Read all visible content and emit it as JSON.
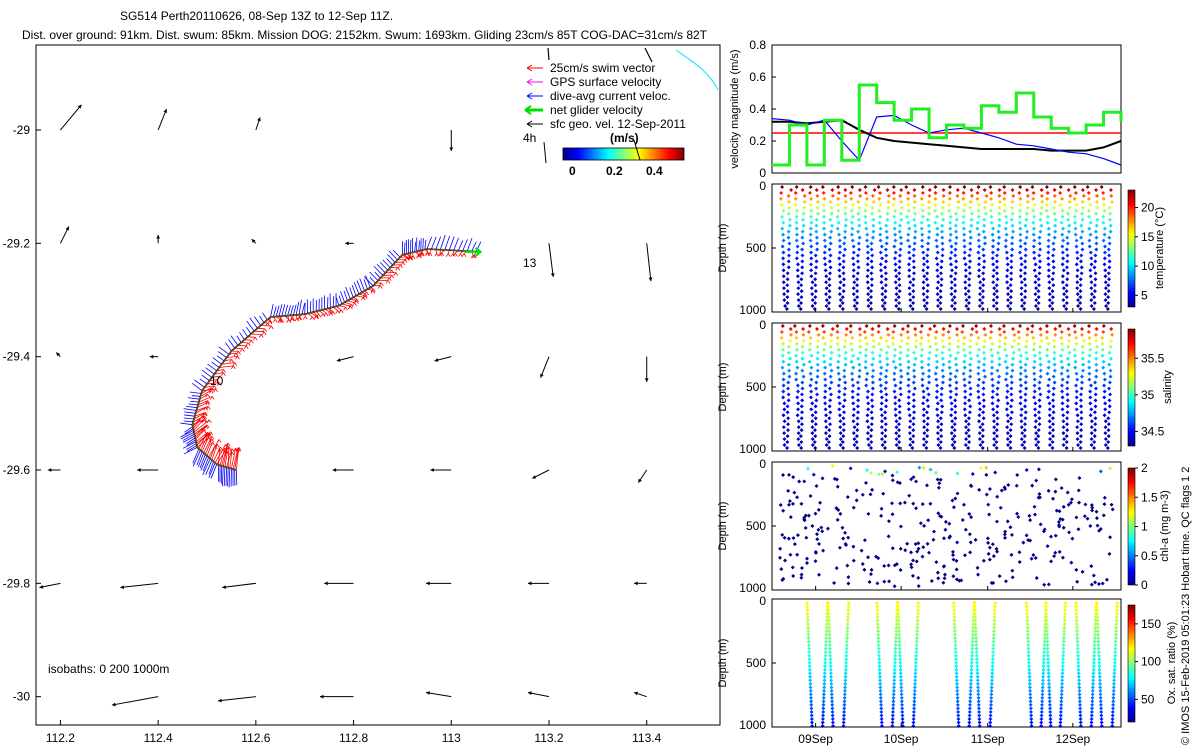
{
  "title": {
    "line1": "SG514 Perth20110626, 08-Sep 13Z to 12-Sep 11Z.",
    "line2": "Dist. over ground: 91km. Dist. swum: 85km. Mission DOG: 2152km. Swum: 1693km. Gliding 23cm/s 85T COG-DAC=31cm/s 82T"
  },
  "credit": "© IMOS 15-Feb-2019 05:01:23 Hobart time. QC flags 1  2",
  "chart_data": [
    {
      "type": "map",
      "xlim": [
        112.15,
        113.55
      ],
      "ylim": [
        -30.05,
        -28.85
      ],
      "x_ticks": [
        112.2,
        112.4,
        112.6,
        112.8,
        113,
        113.2,
        113.4
      ],
      "x_tick_labels": [
        "112.2",
        "112.4",
        "112.6",
        "112.8",
        "113",
        "113.2",
        "113.4"
      ],
      "y_ticks": [
        -29,
        -29.2,
        -29.4,
        -29.6,
        -29.8,
        -30
      ],
      "y_tick_labels": [
        "-29",
        "-29.2",
        "-29.4",
        "-29.6",
        "-29.8",
        "-30"
      ],
      "legend": {
        "placement": "top-right",
        "entries": [
          {
            "label": "25cm/s swim vector",
            "color": "#ff0000"
          },
          {
            "label": "GPS surface velocity",
            "color": "#ff00ff"
          },
          {
            "label": "dive-avg current veloc.",
            "color": "#0000ff"
          },
          {
            "label": "net glider velocity",
            "color": "#00e000"
          },
          {
            "label": "sfc geo. vel. 12-Sep-2011",
            "color": "#000000"
          }
        ],
        "extra_label": "4h",
        "colorbar_title": "(m/s)",
        "colorbar_ticks": [
          "0",
          "0.2",
          "0.4"
        ]
      },
      "track_labels": [
        {
          "text": "13",
          "lon": 113.18,
          "lat": -29.21
        },
        {
          "text": "10",
          "lon": 112.51,
          "lat": -29.43
        }
      ],
      "track": [
        [
          112.56,
          -29.6
        ],
        [
          112.52,
          -29.59
        ],
        [
          112.48,
          -29.56
        ],
        [
          112.47,
          -29.52
        ],
        [
          112.49,
          -29.46
        ],
        [
          112.55,
          -29.39
        ],
        [
          112.63,
          -29.33
        ],
        [
          112.7,
          -29.325
        ],
        [
          112.77,
          -29.31
        ],
        [
          112.84,
          -29.275
        ],
        [
          112.9,
          -29.22
        ],
        [
          112.95,
          -29.21
        ],
        [
          113.06,
          -29.215
        ]
      ],
      "geo_vectors": [
        {
          "lon": 112.2,
          "lat": -29.0,
          "u": 0.05,
          "v": 0.06
        },
        {
          "lon": 112.4,
          "lat": -29.0,
          "u": 0.02,
          "v": 0.05
        },
        {
          "lon": 112.6,
          "lat": -29.0,
          "u": 0.01,
          "v": 0.03
        },
        {
          "lon": 113.0,
          "lat": -29.0,
          "u": 0.0,
          "v": -0.05
        },
        {
          "lon": 112.2,
          "lat": -29.2,
          "u": 0.02,
          "v": 0.04
        },
        {
          "lon": 112.4,
          "lat": -29.2,
          "u": 0.0,
          "v": 0.02
        },
        {
          "lon": 112.6,
          "lat": -29.2,
          "u": -0.01,
          "v": 0.01
        },
        {
          "lon": 112.8,
          "lat": -29.2,
          "u": -0.02,
          "v": 0.0
        },
        {
          "lon": 113.2,
          "lat": -29.2,
          "u": 0.01,
          "v": -0.08
        },
        {
          "lon": 113.4,
          "lat": -29.2,
          "u": 0.01,
          "v": -0.09
        },
        {
          "lon": 112.2,
          "lat": -29.4,
          "u": -0.01,
          "v": 0.01
        },
        {
          "lon": 112.4,
          "lat": -29.4,
          "u": -0.02,
          "v": 0.0
        },
        {
          "lon": 112.8,
          "lat": -29.4,
          "u": -0.04,
          "v": -0.01
        },
        {
          "lon": 113.0,
          "lat": -29.4,
          "u": -0.04,
          "v": -0.01
        },
        {
          "lon": 113.2,
          "lat": -29.4,
          "u": -0.02,
          "v": -0.05
        },
        {
          "lon": 113.4,
          "lat": -29.4,
          "u": 0.0,
          "v": -0.06
        },
        {
          "lon": 112.2,
          "lat": -29.6,
          "u": -0.03,
          "v": 0.0
        },
        {
          "lon": 112.4,
          "lat": -29.6,
          "u": -0.05,
          "v": 0.0
        },
        {
          "lon": 112.8,
          "lat": -29.6,
          "u": -0.05,
          "v": 0.0
        },
        {
          "lon": 113.0,
          "lat": -29.6,
          "u": -0.05,
          "v": 0.0
        },
        {
          "lon": 113.2,
          "lat": -29.6,
          "u": -0.04,
          "v": -0.02
        },
        {
          "lon": 113.4,
          "lat": -29.6,
          "u": -0.02,
          "v": -0.03
        },
        {
          "lon": 112.2,
          "lat": -29.8,
          "u": -0.05,
          "v": -0.01
        },
        {
          "lon": 112.4,
          "lat": -29.8,
          "u": -0.09,
          "v": -0.01
        },
        {
          "lon": 112.6,
          "lat": -29.8,
          "u": -0.08,
          "v": -0.01
        },
        {
          "lon": 112.8,
          "lat": -29.8,
          "u": -0.07,
          "v": 0.0
        },
        {
          "lon": 113.0,
          "lat": -29.8,
          "u": -0.06,
          "v": 0.0
        },
        {
          "lon": 113.2,
          "lat": -29.8,
          "u": -0.05,
          "v": 0.0
        },
        {
          "lon": 113.4,
          "lat": -29.8,
          "u": -0.03,
          "v": 0.0
        },
        {
          "lon": 112.4,
          "lat": -30.0,
          "u": -0.11,
          "v": -0.02
        },
        {
          "lon": 112.6,
          "lat": -30.0,
          "u": -0.09,
          "v": -0.01
        },
        {
          "lon": 112.8,
          "lat": -30.0,
          "u": -0.08,
          "v": 0.0
        },
        {
          "lon": 113.0,
          "lat": -30.0,
          "u": -0.06,
          "v": 0.01
        },
        {
          "lon": 113.2,
          "lat": -30.0,
          "u": -0.05,
          "v": 0.01
        },
        {
          "lon": 113.4,
          "lat": -30.0,
          "u": -0.03,
          "v": 0.01
        }
      ],
      "annotation": "isobaths: 0   200  1000m"
    },
    {
      "type": "line",
      "ylabel": "velocity magnitude (m/s)",
      "ylim": [
        0,
        0.8
      ],
      "y_ticks": [
        0,
        0.2,
        0.4,
        0.6,
        0.8
      ],
      "x": [
        0,
        0.05,
        0.1,
        0.15,
        0.2,
        0.25,
        0.3,
        0.35,
        0.4,
        0.45,
        0.5,
        0.55,
        0.6,
        0.65,
        0.7,
        0.75,
        0.8,
        0.85,
        0.9,
        0.95,
        1
      ],
      "series": [
        {
          "color": "#ff0000",
          "values": [
            0.25,
            0.25,
            0.25,
            0.25,
            0.25,
            0.25,
            0.25,
            0.25,
            0.25,
            0.25,
            0.25,
            0.25,
            0.25,
            0.25,
            0.25,
            0.25,
            0.25,
            0.25,
            0.25,
            0.25,
            0.25
          ]
        },
        {
          "color": "#000000",
          "values": [
            0.32,
            0.32,
            0.31,
            0.32,
            0.33,
            0.27,
            0.22,
            0.2,
            0.19,
            0.18,
            0.17,
            0.16,
            0.15,
            0.15,
            0.15,
            0.15,
            0.14,
            0.14,
            0.14,
            0.16,
            0.2
          ]
        },
        {
          "color": "#0000ff",
          "values": [
            0.34,
            0.33,
            0.3,
            0.33,
            0.2,
            0.08,
            0.35,
            0.36,
            0.3,
            0.25,
            0.27,
            0.28,
            0.25,
            0.22,
            0.18,
            0.17,
            0.15,
            0.13,
            0.12,
            0.09,
            0.05
          ]
        },
        {
          "color": "#00ff00",
          "values": [
            0.05,
            0.3,
            0.05,
            0.33,
            0.08,
            0.55,
            0.44,
            0.33,
            0.4,
            0.22,
            0.3,
            0.28,
            0.42,
            0.38,
            0.5,
            0.35,
            0.28,
            0.25,
            0.3,
            0.38,
            0.32
          ]
        }
      ]
    },
    {
      "type": "scatter",
      "ylabel": "Depth (m)",
      "ylim": [
        1000,
        0
      ],
      "y_ticks": [
        0,
        500,
        1000
      ],
      "colorbar_label": "temperature (°C)",
      "colorbar_ticks": [
        5,
        10,
        15,
        20
      ],
      "value_range": [
        3,
        23
      ],
      "n_profiles": 24,
      "x_range": [
        0.02,
        0.98
      ],
      "max_depth": 1000
    },
    {
      "type": "scatter",
      "ylabel": "Depth (m)",
      "ylim": [
        1000,
        0
      ],
      "y_ticks": [
        0,
        500,
        1000
      ],
      "colorbar_label": "salinity",
      "colorbar_ticks": [
        34.5,
        35,
        35.5
      ],
      "value_range": [
        34.3,
        35.9
      ],
      "n_profiles": 24,
      "x_range": [
        0.02,
        0.98
      ],
      "max_depth": 1000
    },
    {
      "type": "scatter",
      "ylabel": "Depth (m)",
      "ylim": [
        1000,
        0
      ],
      "y_ticks": [
        0,
        500,
        1000
      ],
      "colorbar_label": "chl-a (mg m-3)",
      "colorbar_ticks": [
        0,
        0.5,
        1,
        1.5,
        2
      ],
      "value_range": [
        0,
        2
      ],
      "n_points": 360,
      "max_depth": 1000
    },
    {
      "type": "scatter",
      "ylabel": "Depth (m)",
      "ylim": [
        1000,
        0
      ],
      "y_ticks": [
        0,
        500,
        1000
      ],
      "colorbar_label": "Ox. sat. ratio (%)",
      "colorbar_ticks": [
        50,
        100,
        150
      ],
      "value_range": [
        20,
        175
      ],
      "profile_groups": [
        [
          0.1,
          0.22
        ],
        [
          0.3,
          0.42
        ],
        [
          0.52,
          0.64
        ],
        [
          0.73,
          0.84
        ],
        [
          0.87,
          0.99
        ]
      ],
      "profiles_per_group": 4,
      "max_depth": 1000,
      "x_tick_labels": [
        "09Sep",
        "10Sep",
        "11Sep",
        "12Sep"
      ],
      "x_tick_positions": [
        0.125,
        0.37,
        0.618,
        0.862
      ]
    }
  ]
}
